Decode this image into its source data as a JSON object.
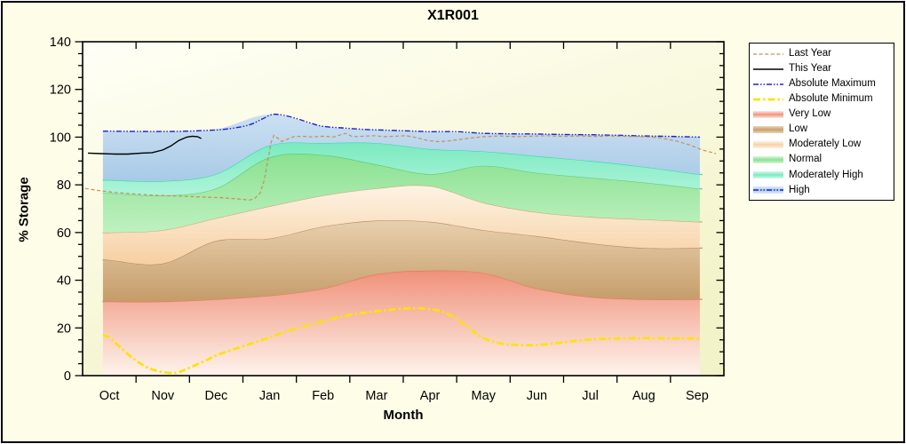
{
  "title": "X1R001",
  "y_axis": {
    "label": "% Storage",
    "min": 0,
    "max": 140,
    "major_step": 20,
    "minor_step": 5,
    "tick_labels": [
      "0",
      "20",
      "40",
      "60",
      "80",
      "100",
      "120",
      "140"
    ]
  },
  "x_axis": {
    "label": "Month",
    "tick_labels": [
      "Oct",
      "Nov",
      "Dec",
      "Jan",
      "Feb",
      "Mar",
      "Apr",
      "May",
      "Jun",
      "Jul",
      "Aug",
      "Sep"
    ]
  },
  "legend": {
    "items": [
      {
        "key": "last_year",
        "label": "Last Year",
        "type": "line"
      },
      {
        "key": "this_year",
        "label": "This Year",
        "type": "line"
      },
      {
        "key": "abs_max",
        "label": "Absolute Maximum",
        "type": "line"
      },
      {
        "key": "abs_min",
        "label": "Absolute Minimum",
        "type": "line"
      },
      {
        "key": "very_low",
        "label": "Very Low",
        "type": "band"
      },
      {
        "key": "low",
        "label": "Low",
        "type": "band"
      },
      {
        "key": "mod_low",
        "label": "Moderately Low",
        "type": "band"
      },
      {
        "key": "normal",
        "label": "Normal",
        "type": "band"
      },
      {
        "key": "mod_high",
        "label": "Moderately High",
        "type": "band"
      },
      {
        "key": "high",
        "label": "High",
        "type": "band",
        "overlay": "abs_max"
      }
    ]
  },
  "colors": {
    "background": "#FEFEE8",
    "plot_bg_top": "#FFFFF6",
    "plot_bg_bottom": "#F3F3C9",
    "axis": "#000000",
    "bands": {
      "very_low": {
        "top": "#F0917A",
        "bottom": "#FEF3EC",
        "edge": "#E4755A",
        "legend_main": "#F2937B",
        "legend_light": "#FDE8E0"
      },
      "low": {
        "top": "#E8D0AE",
        "bottom": "#C59C69",
        "edge": "#B8885A",
        "legend_main": "#C9A06C",
        "legend_light": "#EAD6B8"
      },
      "mod_low": {
        "top": "#FDF3E3",
        "bottom": "#F7D0A4",
        "edge": "#D0A26E",
        "legend_main": "#F8D2A6",
        "legend_light": "#FDF3E3"
      },
      "normal": {
        "top": "#8BE191",
        "bottom": "#BFF1C1",
        "edge": "#55CB68",
        "legend_main": "#8BE191",
        "legend_light": "#D8F6DA"
      },
      "mod_high": {
        "top": "#7CEAC1",
        "bottom": "#AFF4DA",
        "edge": "#2BDCA6",
        "legend_main": "#7CEAC1",
        "legend_light": "#D2FAEC"
      },
      "high": {
        "top": "#CBE0F2",
        "bottom": "#A8CAE6",
        "edge": "none",
        "legend_main": "#A9CBE6",
        "legend_light": "#DDEBF8"
      }
    },
    "lines": {
      "last_year": {
        "color": "#C78E5A",
        "width": 1.2,
        "dash": "4 2.6"
      },
      "this_year": {
        "color": "#000000",
        "width": 1.4,
        "dash": ""
      },
      "abs_max": {
        "color": "#2020CD",
        "width": 1.4,
        "dash": "6 2 1.5 2 1.5 2"
      },
      "abs_min": {
        "color": "#FFE205",
        "width": 2.7,
        "dash": "8 3 2.5 3"
      }
    }
  },
  "chart_data": {
    "type": "area",
    "title": "X1R001",
    "xlabel": "Month",
    "ylabel": "% Storage",
    "ylim": [
      0,
      140
    ],
    "grid": false,
    "legend_position": "right",
    "categories": [
      "Oct",
      "Nov",
      "Dec",
      "Jan",
      "Feb",
      "Mar",
      "Apr",
      "May",
      "Jun",
      "Jul",
      "Aug",
      "Sep"
    ],
    "bands": [
      {
        "key": "very_low",
        "name": "Very Low",
        "top": [
          31,
          31,
          32,
          33.5,
          36.5,
          42.5,
          44,
          43,
          36.5,
          33,
          32,
          32
        ]
      },
      {
        "key": "low",
        "name": "Low",
        "top": [
          48.5,
          47,
          56.5,
          57.5,
          62.5,
          65,
          64.5,
          61,
          58.5,
          55.5,
          53.5,
          53.5
        ]
      },
      {
        "key": "mod_low",
        "name": "Moderately Low",
        "top": [
          60,
          61,
          66,
          71,
          75.5,
          78.5,
          79.5,
          72.5,
          68.5,
          66.5,
          65.5,
          64.5
        ]
      },
      {
        "key": "normal",
        "name": "Normal",
        "top": [
          76.5,
          75.5,
          78.5,
          91.5,
          92.5,
          88.5,
          84.5,
          88,
          85,
          83,
          81,
          78.5
        ]
      },
      {
        "key": "mod_high",
        "name": "Moderately High",
        "top": [
          82,
          81.5,
          84.5,
          96.5,
          97.5,
          97.5,
          95,
          94,
          92,
          90,
          87.5,
          84.5
        ]
      },
      {
        "key": "high",
        "name": "High",
        "top": [
          102.5,
          102.5,
          103.3,
          109.5,
          104.5,
          103,
          102.3,
          101.6,
          101.3,
          101,
          100.5,
          100
        ]
      }
    ],
    "lines": [
      {
        "key": "abs_max",
        "name": "Absolute Maximum",
        "smooth": true,
        "points": [
          [
            -0.12,
            102.5
          ],
          [
            0,
            102.5
          ],
          [
            0.6,
            102.4
          ],
          [
            1.2,
            102.4
          ],
          [
            1.8,
            102.8
          ],
          [
            2.2,
            103.4
          ],
          [
            2.6,
            105
          ],
          [
            2.85,
            107.5
          ],
          [
            3.05,
            109.5
          ],
          [
            3.25,
            109.2
          ],
          [
            3.5,
            107.8
          ],
          [
            3.75,
            106
          ],
          [
            4,
            104.5
          ],
          [
            4.4,
            103.8
          ],
          [
            4.8,
            103.2
          ],
          [
            5.2,
            102.9
          ],
          [
            5.6,
            102.6
          ],
          [
            6,
            102.3
          ],
          [
            6.5,
            102.3
          ],
          [
            7,
            101.6
          ],
          [
            7.5,
            101.4
          ],
          [
            8,
            101.3
          ],
          [
            8.5,
            101.1
          ],
          [
            9,
            101
          ],
          [
            9.5,
            100.8
          ],
          [
            10,
            100.5
          ],
          [
            10.5,
            100.3
          ],
          [
            11.05,
            100
          ]
        ]
      },
      {
        "key": "abs_min",
        "name": "Absolute Minimum",
        "smooth": true,
        "points": [
          [
            -0.12,
            17
          ],
          [
            0,
            16
          ],
          [
            0.15,
            13
          ],
          [
            0.35,
            9
          ],
          [
            0.55,
            5.5
          ],
          [
            0.75,
            3
          ],
          [
            0.95,
            1.7
          ],
          [
            1.15,
            1.1
          ],
          [
            1.3,
            1.4
          ],
          [
            1.45,
            2.8
          ],
          [
            1.65,
            4.8
          ],
          [
            1.85,
            6.8
          ],
          [
            2,
            8.5
          ],
          [
            2.35,
            11.2
          ],
          [
            2.7,
            13.8
          ],
          [
            3,
            16
          ],
          [
            3.35,
            18.8
          ],
          [
            3.7,
            21
          ],
          [
            4,
            22.8
          ],
          [
            4.35,
            24.8
          ],
          [
            4.7,
            26.2
          ],
          [
            5,
            27
          ],
          [
            5.35,
            27.8
          ],
          [
            5.65,
            28.2
          ],
          [
            5.95,
            28
          ],
          [
            6.2,
            27
          ],
          [
            6.45,
            24.5
          ],
          [
            6.7,
            20.5
          ],
          [
            6.9,
            17
          ],
          [
            7.1,
            14.8
          ],
          [
            7.35,
            13.4
          ],
          [
            7.6,
            12.9
          ],
          [
            7.9,
            12.8
          ],
          [
            8.2,
            13.2
          ],
          [
            8.5,
            14
          ],
          [
            8.85,
            14.9
          ],
          [
            9.2,
            15.4
          ],
          [
            9.6,
            15.6
          ],
          [
            10,
            15.7
          ],
          [
            10.5,
            15.6
          ],
          [
            11.05,
            15.6
          ]
        ]
      },
      {
        "key": "last_year",
        "name": "Last Year",
        "smooth": false,
        "points": [
          [
            -0.45,
            78.5
          ],
          [
            -0.2,
            77.6
          ],
          [
            0.1,
            76.8
          ],
          [
            0.5,
            76.1
          ],
          [
            0.9,
            75.6
          ],
          [
            1.3,
            75.3
          ],
          [
            1.7,
            74.9
          ],
          [
            2.1,
            74.6
          ],
          [
            2.45,
            74
          ],
          [
            2.62,
            73.6
          ],
          [
            2.72,
            74.3
          ],
          [
            2.82,
            76.5
          ],
          [
            2.9,
            82
          ],
          [
            2.97,
            91
          ],
          [
            3.03,
            98
          ],
          [
            3.08,
            100.8
          ],
          [
            3.15,
            99.6
          ],
          [
            3.22,
            98.2
          ],
          [
            3.32,
            99
          ],
          [
            3.45,
            100.2
          ],
          [
            3.6,
            100.4
          ],
          [
            3.8,
            100.1
          ],
          [
            4,
            100.4
          ],
          [
            4.2,
            100.1
          ],
          [
            4.42,
            101.6
          ],
          [
            4.55,
            100.2
          ],
          [
            4.75,
            100.4
          ],
          [
            4.95,
            100.6
          ],
          [
            5.15,
            100.2
          ],
          [
            5.35,
            100.4
          ],
          [
            5.55,
            100.6
          ],
          [
            5.75,
            99.8
          ],
          [
            5.95,
            98.6
          ],
          [
            6.15,
            98.1
          ],
          [
            6.35,
            98.4
          ],
          [
            6.55,
            99
          ],
          [
            6.75,
            99.6
          ],
          [
            7,
            100.2
          ],
          [
            7.3,
            100.5
          ],
          [
            7.6,
            100.2
          ],
          [
            7.9,
            100.4
          ],
          [
            8.2,
            100.6
          ],
          [
            8.5,
            100.3
          ],
          [
            8.8,
            100.5
          ],
          [
            9.1,
            100.3
          ],
          [
            9.4,
            100.5
          ],
          [
            9.7,
            100.3
          ],
          [
            10,
            100.2
          ],
          [
            10.3,
            99.7
          ],
          [
            10.6,
            98.4
          ],
          [
            10.85,
            96.8
          ],
          [
            11.1,
            94.6
          ],
          [
            11.35,
            93.1
          ]
        ]
      },
      {
        "key": "this_year",
        "name": "This Year",
        "smooth": false,
        "points": [
          [
            -0.4,
            93.3
          ],
          [
            -0.15,
            93.1
          ],
          [
            0.1,
            92.9
          ],
          [
            0.35,
            92.9
          ],
          [
            0.6,
            93.3
          ],
          [
            0.8,
            93.5
          ],
          [
            1,
            94.6
          ],
          [
            1.15,
            96.3
          ],
          [
            1.3,
            98.6
          ],
          [
            1.45,
            100
          ],
          [
            1.55,
            100.4
          ],
          [
            1.65,
            100.2
          ],
          [
            1.72,
            99.4
          ]
        ]
      }
    ]
  }
}
